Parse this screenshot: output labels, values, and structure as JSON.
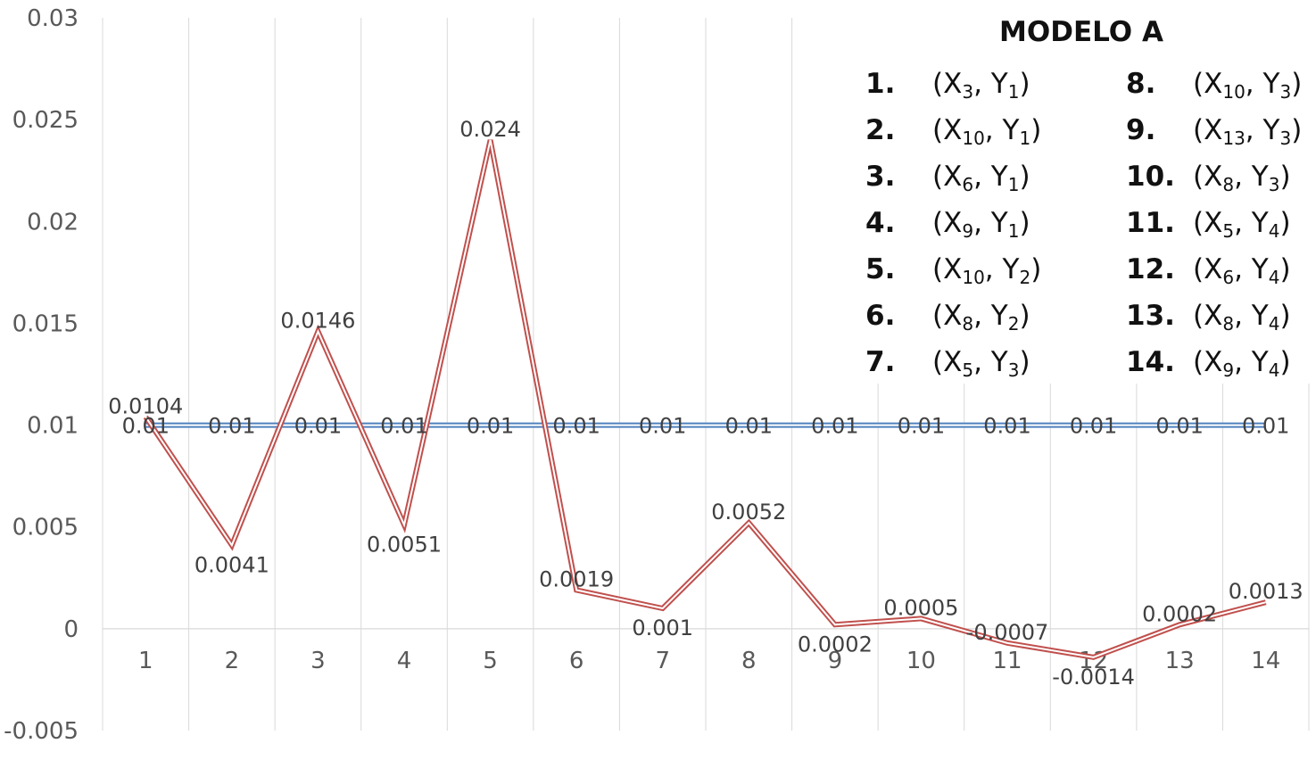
{
  "chart_data": {
    "type": "line",
    "categories": [
      "1",
      "2",
      "3",
      "4",
      "5",
      "6",
      "7",
      "8",
      "9",
      "10",
      "11",
      "12",
      "13",
      "14"
    ],
    "series": [
      {
        "color": "#c0504d",
        "values": [
          0.0104,
          0.0041,
          0.0146,
          0.0051,
          0.024,
          0.0019,
          0.001,
          0.0052,
          0.0002,
          0.0005,
          -0.0007,
          -0.0014,
          0.0002,
          0.0013
        ],
        "labels": [
          "0.0104",
          "0.0041",
          "0.0146",
          "0.0051",
          "0.024",
          "0.0019",
          "0.001",
          "0.0052",
          "0.0002",
          "0.0005",
          "-0.0007",
          "-0.0014",
          "0.0002",
          "0.0013"
        ]
      },
      {
        "color": "#4f81bd",
        "values": [
          0.01,
          0.01,
          0.01,
          0.01,
          0.01,
          0.01,
          0.01,
          0.01,
          0.01,
          0.01,
          0.01,
          0.01,
          0.01,
          0.01
        ],
        "labels": [
          "0.01",
          "0.01",
          "0.01",
          "0.01",
          "0.01",
          "0.01",
          "0.01",
          "0.01",
          "0.01",
          "0.01",
          "0.01",
          "0.01",
          "0.01",
          "0.01"
        ]
      }
    ],
    "yticks": [
      "-0.005",
      "0",
      "0.005",
      "0.01",
      "0.015",
      "0.02",
      "0.025",
      "0.03"
    ],
    "ylim": [
      -0.005,
      0.03
    ],
    "grid": "vertical",
    "title": "",
    "xlabel": "",
    "ylabel": ""
  },
  "legend": {
    "title": "MODELO A",
    "items": [
      {
        "num": "1.",
        "x": "X",
        "xsub": "3",
        "y": "Y",
        "ysub": "1"
      },
      {
        "num": "2.",
        "x": "X",
        "xsub": "10",
        "y": "Y",
        "ysub": "1"
      },
      {
        "num": "3.",
        "x": "X",
        "xsub": "6",
        "y": "Y",
        "ysub": "1"
      },
      {
        "num": "4.",
        "x": "X",
        "xsub": "9",
        "y": "Y",
        "ysub": "1"
      },
      {
        "num": "5.",
        "x": "X",
        "xsub": "10",
        "y": "Y",
        "ysub": "2"
      },
      {
        "num": "6.",
        "x": "X",
        "xsub": "8",
        "y": "Y",
        "ysub": "2"
      },
      {
        "num": "7.",
        "x": "X",
        "xsub": "5",
        "y": "Y",
        "ysub": "3"
      },
      {
        "num": "8.",
        "x": "X",
        "xsub": "10",
        "y": "Y",
        "ysub": "3"
      },
      {
        "num": "9.",
        "x": "X",
        "xsub": "13",
        "y": "Y",
        "ysub": "3"
      },
      {
        "num": "10.",
        "x": "X",
        "xsub": "8",
        "y": "Y",
        "ysub": "3"
      },
      {
        "num": "11.",
        "x": "X",
        "xsub": "5",
        "y": "Y",
        "ysub": "4"
      },
      {
        "num": "12.",
        "x": "X",
        "xsub": "6",
        "y": "Y",
        "ysub": "4"
      },
      {
        "num": "13.",
        "x": "X",
        "xsub": "8",
        "y": "Y",
        "ysub": "4"
      },
      {
        "num": "14.",
        "x": "X",
        "xsub": "9",
        "y": "Y",
        "ysub": "4"
      }
    ]
  }
}
